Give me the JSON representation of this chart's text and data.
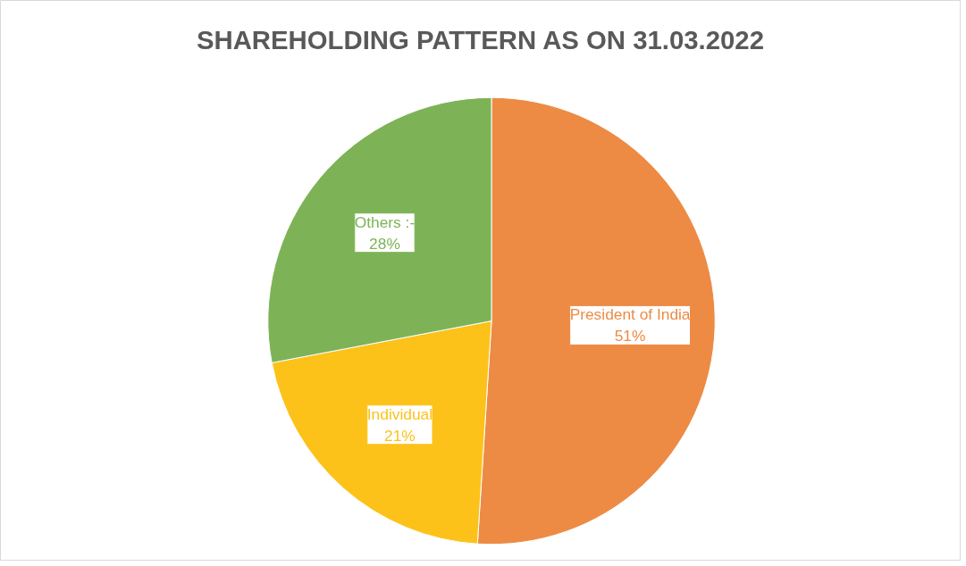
{
  "chart_data": {
    "type": "pie",
    "title": "SHAREHOLDING PATTERN AS ON 31.03.2022",
    "categories": [
      "President of India",
      "Individual",
      "Others :-"
    ],
    "values": [
      51,
      21,
      28
    ],
    "colors": [
      "#ed8b44",
      "#fcc21a",
      "#7db356"
    ],
    "value_labels": [
      "51%",
      "21%",
      "28%"
    ]
  }
}
